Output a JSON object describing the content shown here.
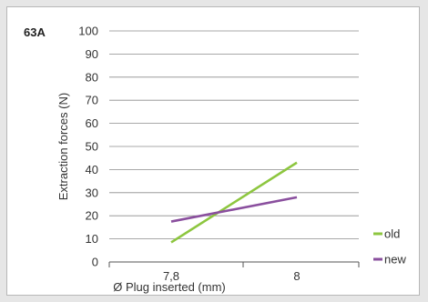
{
  "chart_data": {
    "type": "line",
    "title": "63A",
    "xlabel": "Ø Plug inserted (mm)",
    "ylabel": "Extraction forces (N)",
    "categories": [
      "7,8",
      "8"
    ],
    "y_ticks": [
      "0",
      "10",
      "20",
      "30",
      "40",
      "50",
      "60",
      "70",
      "80",
      "90",
      "100"
    ],
    "ylim": [
      0,
      100
    ],
    "grid": "horizontal",
    "legend_position": "bottom-right",
    "series": [
      {
        "name": "old",
        "color": "#8dc63f",
        "values": [
          8.5,
          43
        ]
      },
      {
        "name": "new",
        "color": "#8a4f9e",
        "values": [
          17.5,
          28
        ]
      }
    ]
  }
}
